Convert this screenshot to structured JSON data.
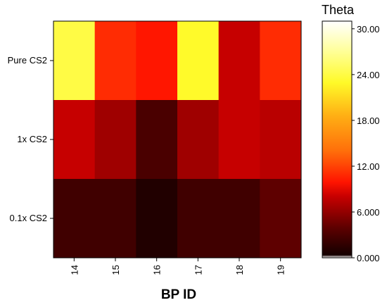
{
  "chart_data": {
    "type": "heatmap",
    "x_categories": [
      "14",
      "15",
      "16",
      "17",
      "18",
      "19"
    ],
    "y_categories": [
      "Pure CS2",
      "1x CS2",
      "0.1x CS2"
    ],
    "xlabel": "BP ID",
    "ylabel": "",
    "colorbar": {
      "title": "Theta",
      "range": [
        0,
        31
      ],
      "ticks": [
        "0.000",
        "6.000",
        "12.00",
        "18.00",
        "24.00",
        "30.00"
      ],
      "tick_values": [
        0,
        6,
        12,
        18,
        24,
        30
      ]
    },
    "values": [
      [
        24,
        11,
        10,
        23,
        8,
        11
      ],
      [
        8,
        6.5,
        3,
        6.5,
        8,
        7.5
      ],
      [
        2.5,
        2.5,
        1,
        2.5,
        2.5,
        4
      ]
    ],
    "grid": false
  }
}
